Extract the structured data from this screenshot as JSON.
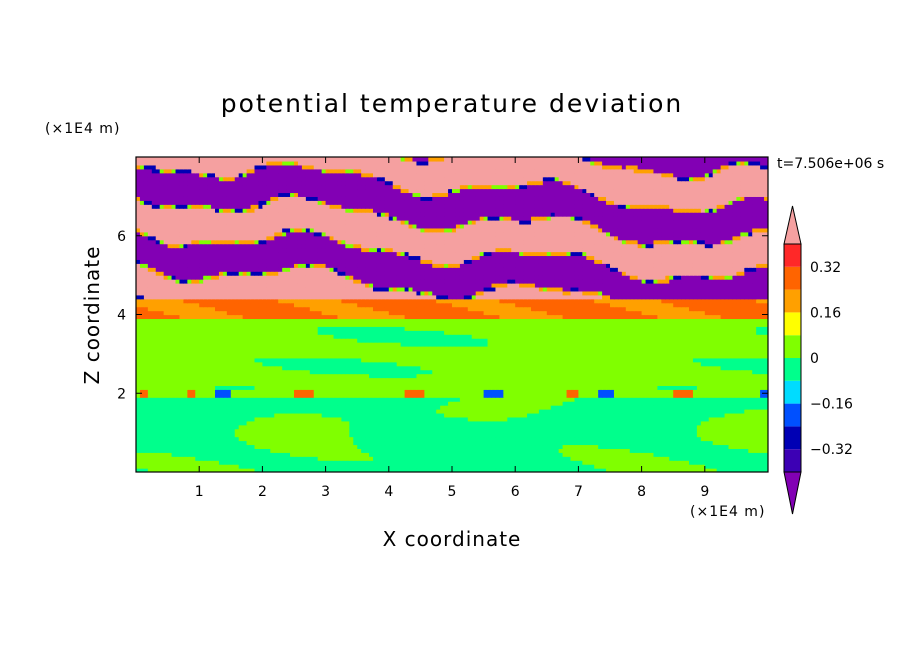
{
  "chart_data": {
    "type": "heatmap",
    "title": "potential temperature deviation",
    "xlabel": "X coordinate",
    "ylabel": "Z coordinate",
    "x_unit": "(×1E4 m)",
    "y_unit": "(×1E4 m)",
    "time_label": "t=7.506e+06 s",
    "xlim": [
      0,
      10
    ],
    "ylim": [
      0,
      8
    ],
    "x_ticks": [
      "1",
      "2",
      "3",
      "4",
      "5",
      "6",
      "7",
      "8",
      "9"
    ],
    "y_ticks": [
      "2",
      "4",
      "6"
    ],
    "colorbar": {
      "levels": [
        -0.4,
        -0.32,
        -0.24,
        -0.16,
        -0.08,
        0,
        0.08,
        0.16,
        0.24,
        0.32,
        0.4
      ],
      "tick_labels": [
        "0.32",
        "0.16",
        "0",
        "−0.16",
        "−0.32"
      ],
      "tick_values": [
        0.32,
        0.16,
        0,
        -0.16,
        -0.32
      ],
      "colors": [
        "#8200b4",
        "#3c00b4",
        "#0000b4",
        "#0050ff",
        "#00dcff",
        "#00ff8c",
        "#80ff00",
        "#ffff00",
        "#ffa000",
        "#ff6400",
        "#ff2828",
        "#f5a0a0"
      ],
      "extend": "both"
    },
    "bands": [
      {
        "z_range": [
          0,
          1.9
        ],
        "description_value": -0.04
      },
      {
        "z_range": [
          1.9,
          2.1
        ],
        "description_value": 0.1
      },
      {
        "z_range": [
          2.1,
          3.9
        ],
        "description_value": 0.04
      },
      {
        "z_range": [
          3.9,
          4.4
        ],
        "description_value": 0.25
      },
      {
        "z_range": [
          4.4,
          8.0
        ],
        "description_value": 0.45
      }
    ]
  }
}
